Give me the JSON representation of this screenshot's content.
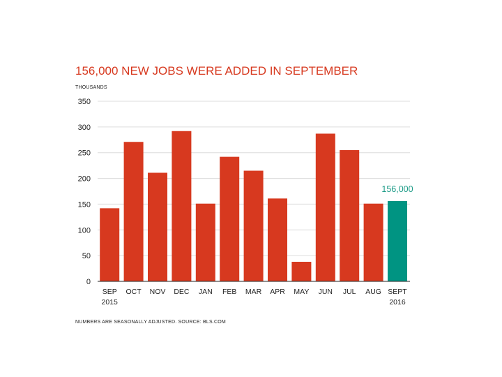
{
  "chart_data": {
    "type": "bar",
    "title": "156,000 NEW JOBS WERE ADDED IN SEPTEMBER",
    "ylabel": "THOUSANDS",
    "xlabel": "",
    "ylim": [
      0,
      350
    ],
    "yticks": [
      0,
      50,
      100,
      150,
      200,
      250,
      300,
      350
    ],
    "grid": true,
    "categories": [
      {
        "label": "SEP",
        "sublabel": "2015",
        "value": 142
      },
      {
        "label": "OCT",
        "sublabel": "",
        "value": 271
      },
      {
        "label": "NOV",
        "sublabel": "",
        "value": 211
      },
      {
        "label": "DEC",
        "sublabel": "",
        "value": 292
      },
      {
        "label": "JAN",
        "sublabel": "",
        "value": 151
      },
      {
        "label": "FEB",
        "sublabel": "",
        "value": 242
      },
      {
        "label": "MAR",
        "sublabel": "",
        "value": 215
      },
      {
        "label": "APR",
        "sublabel": "",
        "value": 161
      },
      {
        "label": "MAY",
        "sublabel": "",
        "value": 38
      },
      {
        "label": "JUN",
        "sublabel": "",
        "value": 287
      },
      {
        "label": "JUL",
        "sublabel": "",
        "value": 255
      },
      {
        "label": "AUG",
        "sublabel": "",
        "value": 151
      },
      {
        "label": "SEPT",
        "sublabel": "2016",
        "value": 156
      }
    ],
    "highlight_index": 12,
    "annotation": "156,000",
    "footnote": "NUMBERS ARE SEASONALLY ADJUSTED. SOURCE: BLS.COM",
    "colors": {
      "bar": "#d7391f",
      "highlight": "#009482",
      "title": "#d7391f",
      "annotation": "#1a9a86",
      "grid": "#dcdcdc",
      "axis": "#222222",
      "text": "#222222"
    }
  }
}
